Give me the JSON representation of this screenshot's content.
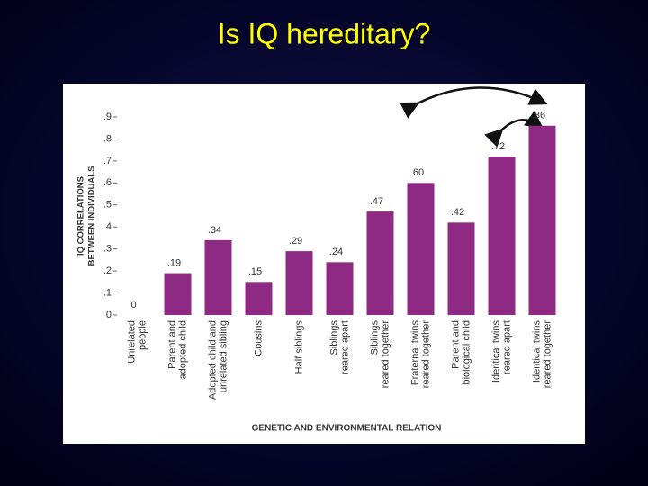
{
  "chart_data": {
    "type": "bar",
    "title": "Is IQ hereditary?",
    "y_label": [
      "IQ CORRELATIONS",
      "BETWEEN INDIVIDUALS"
    ],
    "x_label": "GENETIC AND ENVIRONMENTAL RELATION",
    "categories": [
      [
        "Unrelated",
        "people"
      ],
      [
        "Parent and",
        "adopted child"
      ],
      [
        "Adopted child and",
        "unrelated sibling"
      ],
      [
        "Cousins"
      ],
      [
        "Half siblings"
      ],
      [
        "Siblings",
        "reared apart"
      ],
      [
        "Siblings",
        "reared together"
      ],
      [
        "Fraternal twins",
        "reared together"
      ],
      [
        "Parent and",
        "biological child"
      ],
      [
        "Identical twins",
        "reared apart"
      ],
      [
        "Identical twins",
        "reared together"
      ]
    ],
    "values": [
      0,
      0.19,
      0.34,
      0.15,
      0.29,
      0.24,
      0.47,
      0.6,
      0.42,
      0.72,
      0.86
    ],
    "value_labels": [
      "0",
      ".19",
      ".34",
      ".15",
      ".29",
      ".24",
      ".47",
      ".60",
      ".42",
      ".72",
      ".86"
    ],
    "color": "#8e2a84",
    "ylim": [
      0,
      0.9
    ],
    "yticks": [
      0,
      {
        "value": 0.1,
        "label": ".1"
      },
      {
        "value": 0.2,
        "label": ".2"
      },
      {
        "value": 0.3,
        "label": ".3"
      },
      {
        "value": 0.4,
        "label": ".4"
      },
      {
        "value": 0.5,
        "label": ".5"
      },
      {
        "value": 0.6,
        "label": ".6"
      },
      {
        "value": 0.7,
        "label": ".7"
      },
      {
        "value": 0.8,
        "label": ".8"
      },
      {
        "value": 0.9,
        "label": ".9"
      }
    ],
    "grid": false
  }
}
